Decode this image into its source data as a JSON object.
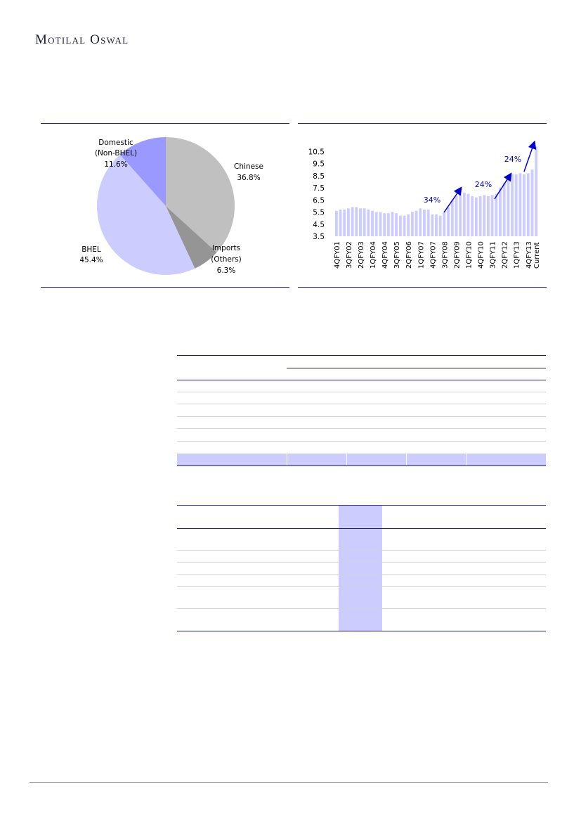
{
  "header": {
    "brand": "Motilal Oswal"
  },
  "pie_chart": {
    "type": "pie",
    "slices": [
      {
        "name": "Chinese",
        "value": 36.8,
        "label": "36.8%",
        "color": "#c0c0c0"
      },
      {
        "name": "Imports (Others)",
        "value": 6.3,
        "label": "6.3%",
        "color": "#959595"
      },
      {
        "name": "BHEL",
        "value": 45.4,
        "label": "45.4%",
        "color": "#ccccff"
      },
      {
        "name": "Domestic (Non-BHEL)",
        "value": 11.6,
        "label": "11.6%",
        "color": "#9999ff"
      }
    ],
    "labels": {
      "chinese": [
        "Chinese",
        "36.8%"
      ],
      "imports": [
        "Imports",
        "(Others)",
        "6.3%"
      ],
      "bhel": [
        "BHEL",
        "45.4%"
      ],
      "domestic": [
        "Domestic",
        "(Non-BHEL)",
        "11.6%"
      ]
    }
  },
  "chart_data": {
    "type": "bar",
    "title": "",
    "xlabel": "",
    "ylabel": "",
    "ylim": [
      3.5,
      11.5
    ],
    "yticks": [
      "3.5",
      "4.5",
      "5.5",
      "6.5",
      "7.5",
      "8.5",
      "9.5",
      "10.5"
    ],
    "categories": [
      "4QFY01",
      "1QFY02",
      "2QFY02",
      "3QFY02",
      "4QFY02",
      "1QFY03",
      "2QFY03",
      "3QFY03",
      "4QFY03",
      "1QFY04",
      "2QFY04",
      "3QFY04",
      "4QFY04",
      "1QFY05",
      "2QFY05",
      "3QFY05",
      "4QFY05",
      "1QFY06",
      "2QFY06",
      "3QFY06",
      "4QFY06",
      "1QFY07",
      "2QFY07",
      "3QFY07",
      "4QFY07",
      "1QFY08",
      "2QFY08",
      "3QFY08",
      "4QFY08",
      "1QFY09",
      "2QFY09",
      "3QFY09",
      "4QFY09",
      "1QFY10",
      "2QFY10",
      "3QFY10",
      "4QFY10",
      "1QFY11",
      "2QFY11",
      "3QFY11",
      "4QFY11",
      "1QFY12",
      "2QFY12",
      "3QFY12",
      "4QFY12",
      "1QFY13",
      "2QFY13",
      "3QFY13",
      "4QFY13",
      "1QFY14",
      "Current"
    ],
    "xtick_labels": [
      "4QFY01",
      "3QFY02",
      "2QFY03",
      "1QFY04",
      "4QFY04",
      "3QFY05",
      "2QFY06",
      "1QFY07",
      "4QFY07",
      "3QFY08",
      "2QFY09",
      "1QFY10",
      "4QFY10",
      "3QFY11",
      "2QFY12",
      "1QFY13",
      "4QFY13",
      "Current"
    ],
    "values": [
      5.6,
      5.7,
      5.7,
      5.8,
      5.9,
      5.9,
      5.8,
      5.8,
      5.7,
      5.6,
      5.5,
      5.5,
      5.4,
      5.4,
      5.5,
      5.4,
      5.2,
      5.2,
      5.3,
      5.5,
      5.6,
      5.8,
      5.7,
      5.7,
      5.3,
      5.3,
      5.2,
      5.5,
      5.9,
      6.5,
      6.8,
      7.3,
      7.1,
      7.0,
      6.8,
      6.7,
      6.8,
      6.9,
      6.8,
      6.9,
      7.0,
      7.5,
      7.9,
      8.4,
      8.6,
      8.6,
      8.7,
      8.6,
      8.7,
      9.0,
      10.9
    ],
    "annotations": [
      "34%",
      "24%",
      "24%"
    ],
    "bar_color": "#ccccff",
    "arrow_color": "#0000cc"
  }
}
